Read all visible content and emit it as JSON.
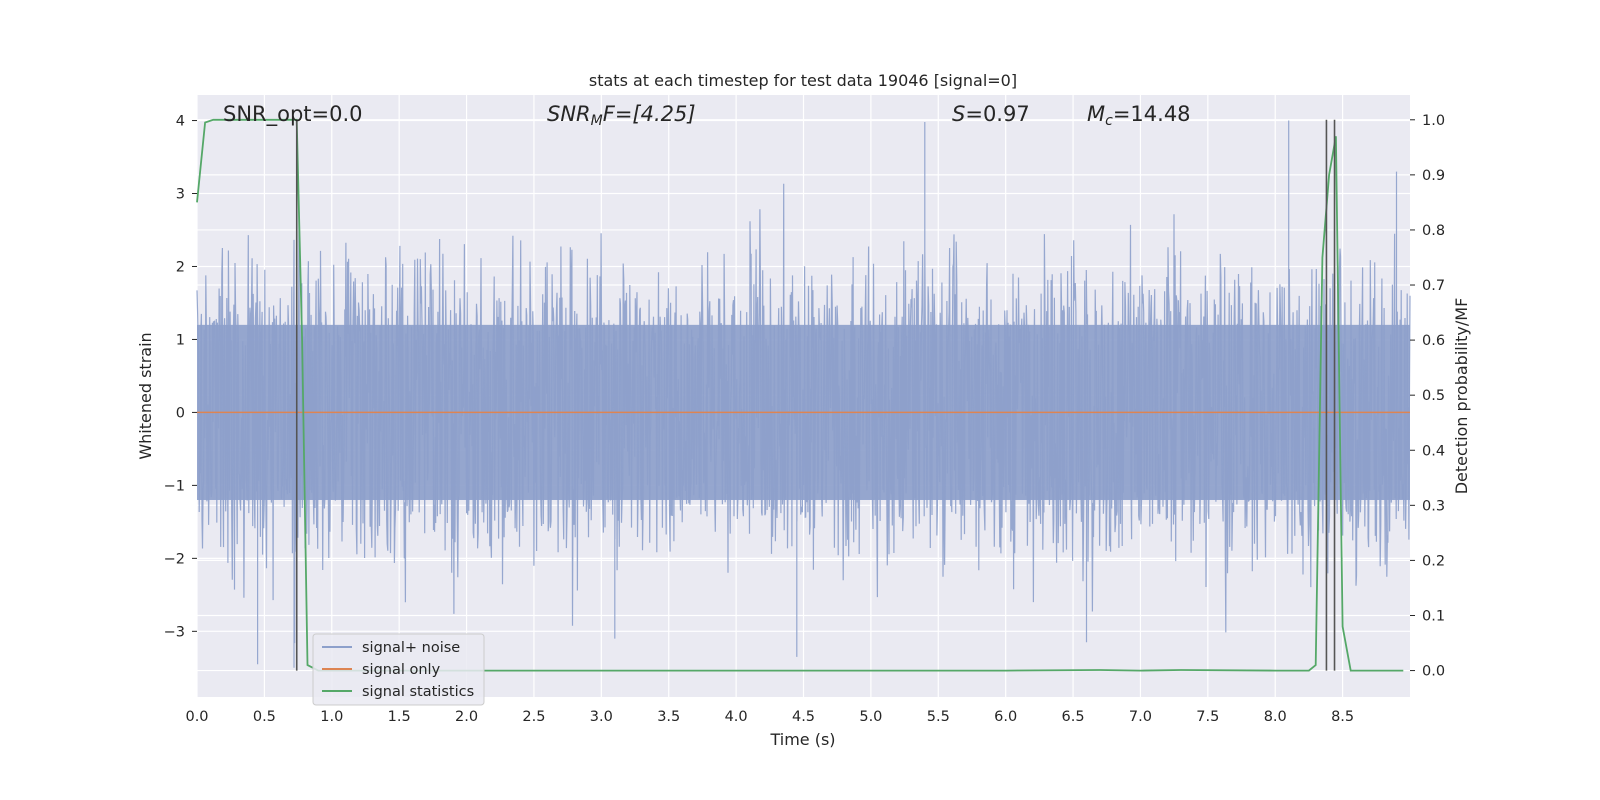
{
  "chart_data": {
    "type": "line",
    "title": "stats at each timestep for test data 19046 [signal=0]",
    "xlabel": "Time (s)",
    "ylabel": "Whitened strain",
    "ylabel_right": "Detection probability/MF",
    "xlim": [
      0,
      9.0
    ],
    "ylim": [
      -3.9,
      4.35
    ],
    "ylim_right": [
      -0.048,
      1.045
    ],
    "x_ticks": [
      0.0,
      0.5,
      1.0,
      1.5,
      2.0,
      2.5,
      3.0,
      3.5,
      4.0,
      4.5,
      5.0,
      5.5,
      6.0,
      6.5,
      7.0,
      7.5,
      8.0,
      8.5
    ],
    "x_tick_labels": [
      "0.0",
      "0.5",
      "1.0",
      "1.5",
      "2.0",
      "2.5",
      "3.0",
      "3.5",
      "4.0",
      "4.5",
      "5.0",
      "5.5",
      "6.0",
      "6.5",
      "7.0",
      "7.5",
      "8.0",
      "8.5"
    ],
    "y_ticks": [
      -3,
      -2,
      -1,
      0,
      1,
      2,
      3,
      4
    ],
    "y_tick_labels": [
      "−3",
      "−2",
      "−1",
      "0",
      "1",
      "2",
      "3",
      "4"
    ],
    "y_right_ticks": [
      0.0,
      0.1,
      0.2,
      0.3,
      0.4,
      0.5,
      0.6,
      0.7,
      0.8,
      0.9,
      1.0
    ],
    "y_right_tick_labels": [
      "0.0",
      "0.1",
      "0.2",
      "0.3",
      "0.4",
      "0.5",
      "0.6",
      "0.7",
      "0.8",
      "0.9",
      "1.0"
    ],
    "grid": true,
    "legend_position": "lower-left",
    "annotations": {
      "snr_opt": "SNR_opt=0.0",
      "snr_mf": "SNR",
      "snr_mf_sub": "M",
      "snr_mf_rest": "F=[4.25]",
      "s_var": "S",
      "s_val": "=0.97",
      "mc_var": "M",
      "mc_sub": "c",
      "mc_val": "=14.48"
    },
    "series": [
      {
        "name": "signal+ noise",
        "color": "#8da0cb",
        "kind": "noise",
        "typical_amplitude": 1.8,
        "min": -3.5,
        "max": 4.0,
        "peaks": [
          [
            0.45,
            -3.45
          ],
          [
            0.72,
            -3.5
          ],
          [
            3.1,
            -3.1
          ],
          [
            4.45,
            -3.35
          ],
          [
            5.4,
            3.98
          ],
          [
            6.6,
            -3.15
          ],
          [
            8.1,
            4.0
          ],
          [
            8.9,
            3.3
          ]
        ]
      },
      {
        "name": "signal only",
        "color": "#dd8452",
        "kind": "line",
        "x": [
          0.0,
          9.0
        ],
        "y": [
          0.0,
          0.0
        ]
      },
      {
        "name": "signal statistics",
        "color": "#55a868",
        "kind": "line",
        "axis": "right",
        "x": [
          0.0,
          0.06,
          0.12,
          0.2,
          0.3,
          0.45,
          0.6,
          0.7,
          0.74,
          0.78,
          0.82,
          0.9,
          1.0,
          2.0,
          3.0,
          4.0,
          5.0,
          6.0,
          6.7,
          7.0,
          7.3,
          8.0,
          8.25,
          8.3,
          8.35,
          8.4,
          8.45,
          8.5,
          8.56,
          8.65,
          8.8,
          8.95
        ],
        "y": [
          0.85,
          0.995,
          1.0,
          1.0,
          1.0,
          1.0,
          1.0,
          1.0,
          1.0,
          0.6,
          0.01,
          0.0,
          0.0,
          0.0,
          0.0,
          0.0,
          0.0,
          0.0,
          0.001,
          0.0,
          0.001,
          0.0,
          0.0,
          0.01,
          0.75,
          0.9,
          0.97,
          0.08,
          0.0,
          0.0,
          0.0,
          0.0
        ]
      }
    ],
    "vlines": [
      {
        "x": 0.74,
        "ymin": 0.0,
        "ymax": 1.0,
        "color": "#555555"
      },
      {
        "x": 8.38,
        "ymin": 0.0,
        "ymax": 1.0,
        "color": "#555555"
      },
      {
        "x": 8.44,
        "ymin": 0.0,
        "ymax": 1.0,
        "color": "#555555"
      }
    ]
  }
}
